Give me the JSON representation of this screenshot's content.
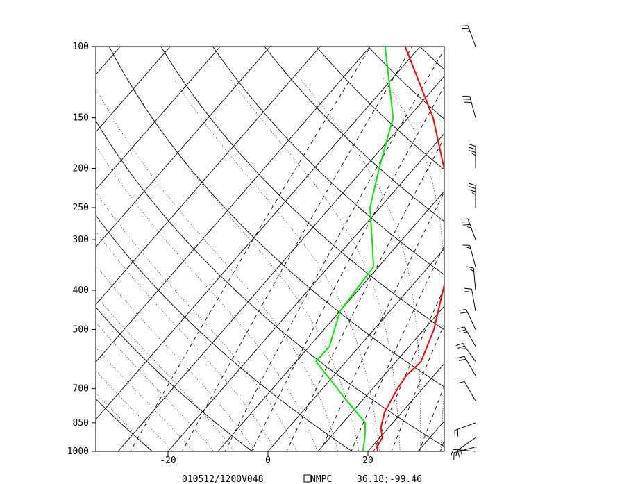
{
  "chart_data": {
    "type": "line",
    "title": "",
    "xlabel": "",
    "ylabel": "",
    "y_scale": "log-pressure",
    "xlim": [
      -35,
      35
    ],
    "ylim": [
      1000,
      100
    ],
    "pressure_ticks": [
      {
        "p": 100,
        "label": "100"
      },
      {
        "p": 150,
        "label": "150"
      },
      {
        "p": 200,
        "label": "200"
      },
      {
        "p": 250,
        "label": "250"
      },
      {
        "p": 300,
        "label": "300"
      },
      {
        "p": 400,
        "label": "400"
      },
      {
        "p": 500,
        "label": "500"
      },
      {
        "p": 700,
        "label": "700"
      },
      {
        "p": 850,
        "label": "850"
      },
      {
        "p": 1000,
        "label": "1000"
      }
    ],
    "temp_ticks": [
      {
        "t": -20,
        "label": "-20"
      },
      {
        "t": 0,
        "label": "0"
      },
      {
        "t": 20,
        "label": "20"
      }
    ],
    "footer": {
      "valid": "010512/1200V048",
      "source": "NMPC",
      "location": "36.18;-99.46"
    },
    "series": [
      {
        "color": "#ff0000",
        "points": [
          {
            "p": 1000,
            "t": 22.0
          },
          {
            "p": 975,
            "t": 21.0
          },
          {
            "p": 925,
            "t": 20.5
          },
          {
            "p": 875,
            "t": 18.5
          },
          {
            "p": 800,
            "t": 16.5
          },
          {
            "p": 700,
            "t": 15.0
          },
          {
            "p": 650,
            "t": 14.5
          },
          {
            "p": 600,
            "t": 15.0
          },
          {
            "p": 500,
            "t": 12.0
          },
          {
            "p": 400,
            "t": 7.0
          },
          {
            "p": 300,
            "t": 0.5
          },
          {
            "p": 250,
            "t": -4.0
          },
          {
            "p": 200,
            "t": -14.0
          },
          {
            "p": 150,
            "t": -25.0
          },
          {
            "p": 100,
            "t": -43.0
          }
        ]
      },
      {
        "color": "#00ee00",
        "points": [
          {
            "p": 1000,
            "t": 19.0
          },
          {
            "p": 925,
            "t": 17.0
          },
          {
            "p": 850,
            "t": 14.5
          },
          {
            "p": 750,
            "t": 7.0
          },
          {
            "p": 600,
            "t": -6.0
          },
          {
            "p": 550,
            "t": -6.0
          },
          {
            "p": 450,
            "t": -10.0
          },
          {
            "p": 350,
            "t": -11.0
          },
          {
            "p": 300,
            "t": -16.0
          },
          {
            "p": 250,
            "t": -22.0
          },
          {
            "p": 200,
            "t": -27.0
          },
          {
            "p": 150,
            "t": -33.0
          },
          {
            "p": 100,
            "t": -47.0
          }
        ]
      }
    ],
    "wind_barbs": [
      {
        "p": 1000,
        "dir": 275,
        "spd": 10
      },
      {
        "p": 975,
        "dir": 255,
        "spd": 15
      },
      {
        "p": 925,
        "dir": 235,
        "spd": 20
      },
      {
        "p": 850,
        "dir": 250,
        "spd": 20
      },
      {
        "p": 750,
        "dir": 330,
        "spd": 10
      },
      {
        "p": 650,
        "dir": 330,
        "spd": 20
      },
      {
        "p": 600,
        "dir": 325,
        "spd": 25
      },
      {
        "p": 550,
        "dir": 330,
        "spd": 25
      },
      {
        "p": 500,
        "dir": 335,
        "spd": 20
      },
      {
        "p": 450,
        "dir": 350,
        "spd": 20
      },
      {
        "p": 400,
        "dir": 355,
        "spd": 15
      },
      {
        "p": 350,
        "dir": 345,
        "spd": 15
      },
      {
        "p": 300,
        "dir": 340,
        "spd": 35
      },
      {
        "p": 250,
        "dir": 0,
        "spd": 35
      },
      {
        "p": 200,
        "dir": 0,
        "spd": 35
      },
      {
        "p": 150,
        "dir": 345,
        "spd": 30
      },
      {
        "p": 100,
        "dir": 340,
        "spd": 25
      }
    ]
  }
}
